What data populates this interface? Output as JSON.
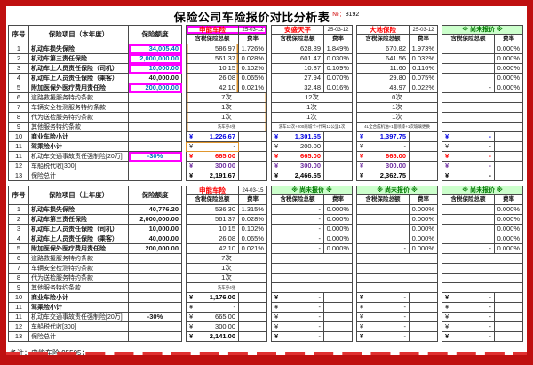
{
  "page": {
    "title": "保险公司车险报价对比分析表",
    "doc_no_mark": "№：",
    "doc_no": "8192",
    "footnote": "备注：申能车险 95505；"
  },
  "colors": {
    "frame_red": "#bf1010",
    "company_red": "#ff0000",
    "quota_blue": "#0070C0",
    "subtotal_blue": "#0000e0",
    "compulsory_red": "#ff0000",
    "tax_purple": "#7030A0",
    "not_quoted_green": "#007800",
    "not_quoted_bg": "#ccffcc",
    "highlight_pink": "#ff00ff",
    "highlight_orange": "#e0962e"
  },
  "tables": [
    {
      "key": "current-year",
      "headers": {
        "no": "序号",
        "item": "保险项目（本年度）",
        "quota": "保险额度",
        "amount": "含税保险总额",
        "rate": "费率"
      },
      "companies": [
        {
          "name": "申能车险",
          "date": "25-03-12",
          "pink_box": true,
          "col_highlight": true
        },
        {
          "name": "安盛天平",
          "date": "25-03-12"
        },
        {
          "name": "大地保险",
          "date": "25-03-12"
        },
        {
          "label": "※ 尚未报价 ※",
          "green": true
        }
      ],
      "rows": [
        {
          "no": "1",
          "item": "机动车损失保险",
          "bold": true,
          "type": "normal",
          "quota": "34,005.40",
          "quota_hl": true,
          "quota_blue": true,
          "cells": [
            [
              "586.97",
              "1.726%"
            ],
            [
              "628.89",
              "1.849%"
            ],
            [
              "670.82",
              "1.973%"
            ],
            [
              "",
              "0.000%"
            ]
          ]
        },
        {
          "no": "2",
          "item": "机动车第三责任保险",
          "bold": true,
          "type": "normal",
          "quota": "2,000,000.00",
          "quota_hl": true,
          "quota_blue": true,
          "cells": [
            [
              "561.37",
              "0.028%"
            ],
            [
              "601.47",
              "0.030%"
            ],
            [
              "641.56",
              "0.032%"
            ],
            [
              "",
              "0.000%"
            ]
          ]
        },
        {
          "no": "3",
          "item": "机动车上人员责任保险（司机）",
          "bold": true,
          "type": "normal",
          "quota": "10,000.00",
          "quota_hl": true,
          "quota_blue": true,
          "cells": [
            [
              "10.15",
              "0.102%"
            ],
            [
              "10.87",
              "0.109%"
            ],
            [
              "11.60",
              "0.116%"
            ],
            [
              "",
              "0.000%"
            ]
          ]
        },
        {
          "no": "4",
          "item": "机动车上人员责任保险（乘客）",
          "bold": true,
          "type": "normal",
          "quota": "40,000.00",
          "cells": [
            [
              "26.08",
              "0.065%"
            ],
            [
              "27.94",
              "0.070%"
            ],
            [
              "29.80",
              "0.075%"
            ],
            [
              "",
              "0.000%"
            ]
          ]
        },
        {
          "no": "5",
          "item": "附加医保外医疗费用责任险",
          "bold": true,
          "type": "normal",
          "quota": "200,000.00",
          "quota_hl": true,
          "quota_blue": true,
          "cells": [
            [
              "42.10",
              "0.021%"
            ],
            [
              "32.48",
              "0.016%"
            ],
            [
              "43.97",
              "0.022%"
            ],
            [
              "-",
              "0.000%"
            ]
          ]
        },
        {
          "no": "6",
          "item": "道路救援服务特约条款",
          "type": "span",
          "quota": "",
          "cells": [
            [
              "7次"
            ],
            [
              "12次"
            ],
            [
              "0次"
            ],
            [
              ""
            ]
          ]
        },
        {
          "no": "7",
          "item": "车辆安全检测服务特约条款",
          "type": "span",
          "quota": "",
          "cells": [
            [
              "1次"
            ],
            [
              "1次"
            ],
            [
              "1次"
            ],
            [
              ""
            ]
          ]
        },
        {
          "no": "8",
          "item": "代为送检服务特约条款",
          "type": "span",
          "quota": "",
          "cells": [
            [
              "1次"
            ],
            [
              "1次"
            ],
            [
              "1次"
            ],
            [
              ""
            ]
          ]
        },
        {
          "no": "9",
          "item": "其他服务特约条款",
          "type": "span",
          "small": true,
          "quota": "",
          "cells": [
            [
              "洗车券4张"
            ],
            [
              "洗车12次+200商城卡+代驾12公里1次"
            ],
            [
              "4L全合成机油+1面喷漆+1次玻璃更换"
            ],
            [
              ""
            ]
          ]
        },
        {
          "no": "10",
          "item": "商业车险小计",
          "bold": true,
          "type": "money",
          "quota": "",
          "vcls": "v-blue",
          "cells": [
            [
              "¥",
              "1,226.67"
            ],
            [
              "¥",
              "1,301.65"
            ],
            [
              "¥",
              "1,397.75"
            ],
            [
              "¥",
              "-"
            ]
          ]
        },
        {
          "no": "11",
          "item": "驾乘险小计",
          "bold": true,
          "type": "money",
          "quota": "",
          "orange_box_first": true,
          "cells": [
            [
              "¥",
              "-"
            ],
            [
              "¥",
              "200.00"
            ],
            [
              "¥",
              "-"
            ],
            [
              "¥",
              "-"
            ]
          ]
        },
        {
          "no": "11",
          "item": "机动车交通事故责任强制险[20万]",
          "type": "money",
          "quota": "-30%",
          "quota_hl": true,
          "quota_blue": true,
          "vcls": "v-red",
          "cells": [
            [
              "¥",
              "665.00"
            ],
            [
              "¥",
              "665.00"
            ],
            [
              "¥",
              "665.00"
            ],
            [
              "¥",
              "-"
            ]
          ]
        },
        {
          "no": "12",
          "item": "车船税代收[300]",
          "type": "money",
          "quota": "",
          "vcls": "v-purple",
          "cells": [
            [
              "¥",
              "300.00"
            ],
            [
              "¥",
              "300.00"
            ],
            [
              "¥",
              "300.00"
            ],
            [
              "¥",
              "-"
            ]
          ]
        },
        {
          "no": "13",
          "item": "保险总计",
          "type": "money",
          "quota": "",
          "vcls": "v-total",
          "cells": [
            [
              "¥",
              "2,191.67"
            ],
            [
              "¥",
              "2,466.65"
            ],
            [
              "¥",
              "2,362.75"
            ],
            [
              "¥",
              "-"
            ]
          ]
        }
      ]
    },
    {
      "key": "previous-year",
      "headers": {
        "no": "序号",
        "item": "保险项目（上年度）",
        "quota": "保险额度",
        "amount": "含税保险总额",
        "rate": "费率"
      },
      "companies": [
        {
          "name": "申能车险",
          "date": "24-03-15"
        },
        {
          "label": "※ 尚未报价 ※",
          "green": true
        },
        {
          "label": "※ 尚未报价 ※",
          "green": true
        },
        {
          "label": "※ 尚未报价 ※",
          "green": true
        }
      ],
      "rows": [
        {
          "no": "1",
          "item": "机动车损失保险",
          "bold": true,
          "type": "normal",
          "quota": "40,776.20",
          "cells": [
            [
              "536.30",
              "1.315%"
            ],
            [
              "-",
              "0.000%"
            ],
            [
              "",
              "0.000%"
            ],
            [
              "",
              "0.000%"
            ]
          ]
        },
        {
          "no": "2",
          "item": "机动车第三责任保险",
          "bold": true,
          "type": "normal",
          "quota": "2,000,000.00",
          "cells": [
            [
              "561.37",
              "0.028%"
            ],
            [
              "-",
              "0.000%"
            ],
            [
              "",
              "0.000%"
            ],
            [
              "",
              "0.000%"
            ]
          ]
        },
        {
          "no": "3",
          "item": "机动车上人员责任保险（司机）",
          "bold": true,
          "type": "normal",
          "quota": "10,000.00",
          "cells": [
            [
              "10.15",
              "0.102%"
            ],
            [
              "-",
              "0.000%"
            ],
            [
              "",
              "0.000%"
            ],
            [
              "",
              "0.000%"
            ]
          ]
        },
        {
          "no": "4",
          "item": "机动车上人员责任保险（乘客）",
          "bold": true,
          "type": "normal",
          "quota": "40,000.00",
          "cells": [
            [
              "26.08",
              "0.065%"
            ],
            [
              "-",
              "0.000%"
            ],
            [
              "",
              "0.000%"
            ],
            [
              "",
              "0.000%"
            ]
          ]
        },
        {
          "no": "5",
          "item": "附加医保外医疗费用责任险",
          "bold": true,
          "type": "normal",
          "quota": "200,000.00",
          "cells": [
            [
              "42.10",
              "0.021%"
            ],
            [
              "-",
              "0.000%"
            ],
            [
              "-",
              "0.000%"
            ],
            [
              "-",
              "0.000%"
            ]
          ]
        },
        {
          "no": "6",
          "item": "道路救援服务特约条款",
          "type": "span",
          "quota": "",
          "cells": [
            [
              "7次"
            ],
            [
              ""
            ],
            [
              ""
            ],
            [
              ""
            ]
          ]
        },
        {
          "no": "7",
          "item": "车辆安全检测特约条款",
          "type": "span",
          "quota": "",
          "cells": [
            [
              "1次"
            ],
            [
              ""
            ],
            [
              ""
            ],
            [
              ""
            ]
          ]
        },
        {
          "no": "8",
          "item": "代为送检服务特约条款",
          "type": "span",
          "quota": "",
          "cells": [
            [
              "1次"
            ],
            [
              ""
            ],
            [
              ""
            ],
            [
              ""
            ]
          ]
        },
        {
          "no": "9",
          "item": "其他服务特约条款",
          "type": "span",
          "small": true,
          "quota": "",
          "cells": [
            [
              "洗车券4张"
            ],
            [
              ""
            ],
            [
              ""
            ],
            [
              ""
            ]
          ]
        },
        {
          "no": "10",
          "item": "商业车险小计",
          "bold": true,
          "type": "money",
          "quota": "",
          "vcls": "v-total",
          "cells": [
            [
              "¥",
              "1,176.00"
            ],
            [
              "¥",
              "-"
            ],
            [
              "¥",
              "-"
            ],
            [
              "¥",
              "-"
            ]
          ]
        },
        {
          "no": "11",
          "item": "驾乘险小计",
          "bold": true,
          "type": "money",
          "quota": "",
          "cells": [
            [
              "¥",
              "-"
            ],
            [
              "¥",
              "-"
            ],
            [
              "¥",
              "-"
            ],
            [
              "¥",
              "-"
            ]
          ]
        },
        {
          "no": "11",
          "item": "机动车交通事故责任强制险[20万]",
          "type": "money",
          "quota": "-30%",
          "quota_bold": true,
          "cells": [
            [
              "¥",
              "665.00"
            ],
            [
              "¥",
              "-"
            ],
            [
              "¥",
              "-"
            ],
            [
              "¥",
              "-"
            ]
          ]
        },
        {
          "no": "12",
          "item": "车船税代收[300]",
          "type": "money",
          "quota": "",
          "cells": [
            [
              "¥",
              "300.00"
            ],
            [
              "¥",
              "-"
            ],
            [
              "¥",
              "-"
            ],
            [
              "¥",
              "-"
            ]
          ]
        },
        {
          "no": "13",
          "item": "保险总计",
          "type": "money",
          "quota": "",
          "vcls": "v-total",
          "cells": [
            [
              "¥",
              "2,141.00"
            ],
            [
              "¥",
              "-"
            ],
            [
              "¥",
              "-"
            ],
            [
              "¥",
              "-"
            ]
          ]
        }
      ]
    }
  ]
}
